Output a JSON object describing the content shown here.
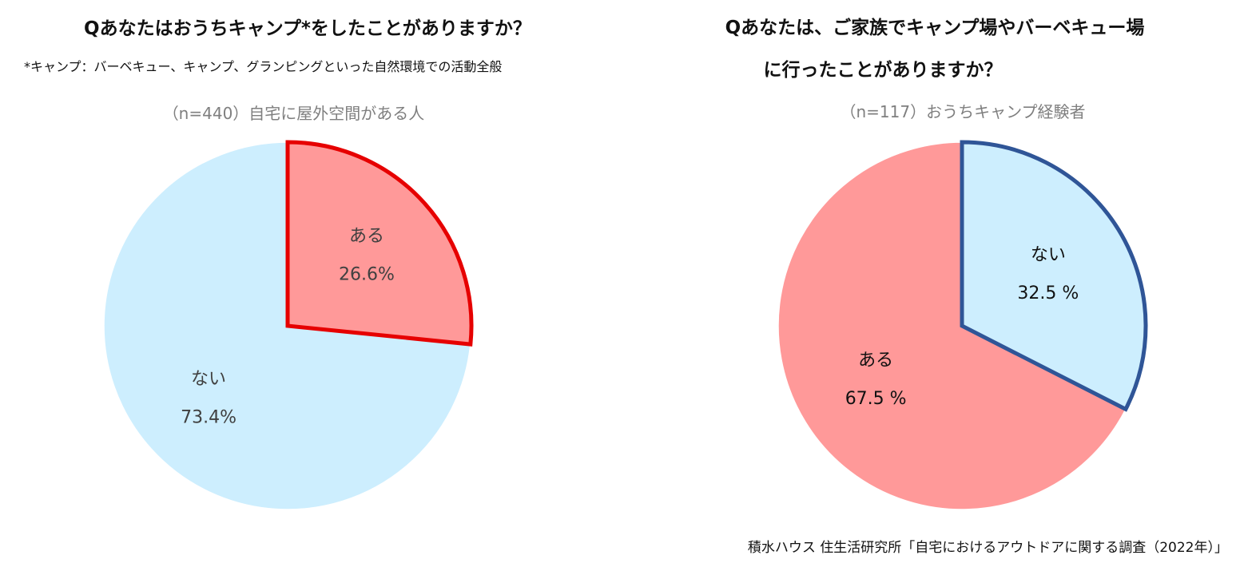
{
  "left": {
    "title": "Qあなたはおうちキャンプ*をしたことがありますか？",
    "note": "*キャンプ：バーベキュー、キャンプ、グランピングといった自然環境での活動全般",
    "sample": "（n=440）自宅に屋外空間がある人"
  },
  "right": {
    "title_line1": "Qあなたは、ご家族でキャンプ場やバーベキュー場",
    "title_line2": "に行ったことがありますか？",
    "sample": "（n=117）おうちキャンプ経験者"
  },
  "source": "積水ハウス 住生活研究所「自宅におけるアウトドアに関する調査（2022年）」",
  "chart_data": [
    {
      "type": "pie",
      "title": "Qあなたはおうちキャンプ*をしたことがありますか？",
      "subtitle": "（n=440）自宅に屋外空間がある人",
      "slices": [
        {
          "label": "ある",
          "value": 26.6,
          "display": "26.6%",
          "color": "#ff9999",
          "highlight_stroke": "#e60000"
        },
        {
          "label": "ない",
          "value": 73.4,
          "display": "73.4%",
          "color": "#cdeefe"
        }
      ]
    },
    {
      "type": "pie",
      "title": "Qあなたは、ご家族でキャンプ場やバーベキュー場に行ったことがありますか？",
      "subtitle": "（n=117）おうちキャンプ経験者",
      "slices": [
        {
          "label": "ない",
          "value": 32.5,
          "display": "32.5 %",
          "color": "#cdeefe",
          "highlight_stroke": "#2f5597"
        },
        {
          "label": "ある",
          "value": 67.5,
          "display": "67.5 %",
          "color": "#ff9999"
        }
      ]
    }
  ]
}
